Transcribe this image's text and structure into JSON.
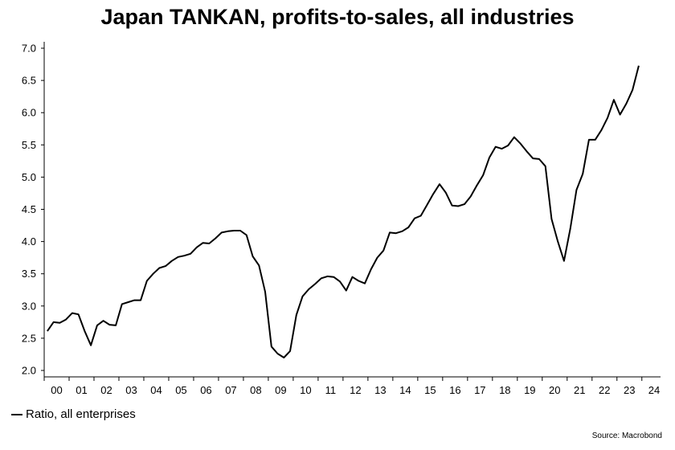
{
  "chart_data": {
    "type": "line",
    "title": "Japan TANKAN, profits-to-sales, all industries",
    "xlabel": "",
    "ylabel": "",
    "x_ticks": [
      "00",
      "01",
      "02",
      "03",
      "04",
      "05",
      "06",
      "07",
      "08",
      "09",
      "10",
      "11",
      "12",
      "13",
      "14",
      "15",
      "16",
      "17",
      "18",
      "19",
      "20",
      "21",
      "22",
      "23",
      "24"
    ],
    "ylim": [
      2.0,
      7.0
    ],
    "y_ticks": [
      "2.0",
      "2.5",
      "3.0",
      "3.5",
      "4.0",
      "4.5",
      "5.0",
      "5.5",
      "6.0",
      "6.5",
      "7.0"
    ],
    "grid": false,
    "legend": "bottom-left",
    "series": [
      {
        "name": "Ratio, all enterprises",
        "color": "#000000",
        "x": [
          "2000Q1",
          "2000Q2",
          "2000Q3",
          "2000Q4",
          "2001Q1",
          "2001Q2",
          "2001Q3",
          "2001Q4",
          "2002Q1",
          "2002Q2",
          "2002Q3",
          "2002Q4",
          "2003Q1",
          "2003Q2",
          "2003Q3",
          "2003Q4",
          "2004Q1",
          "2004Q2",
          "2004Q3",
          "2004Q4",
          "2005Q1",
          "2005Q2",
          "2005Q3",
          "2005Q4",
          "2006Q1",
          "2006Q2",
          "2006Q3",
          "2006Q4",
          "2007Q1",
          "2007Q2",
          "2007Q3",
          "2007Q4",
          "2008Q1",
          "2008Q2",
          "2008Q3",
          "2008Q4",
          "2009Q1",
          "2009Q2",
          "2009Q3",
          "2009Q4",
          "2010Q1",
          "2010Q2",
          "2010Q3",
          "2010Q4",
          "2011Q1",
          "2011Q2",
          "2011Q3",
          "2011Q4",
          "2012Q1",
          "2012Q2",
          "2012Q3",
          "2012Q4",
          "2013Q1",
          "2013Q2",
          "2013Q3",
          "2013Q4",
          "2014Q1",
          "2014Q2",
          "2014Q3",
          "2014Q4",
          "2015Q1",
          "2015Q2",
          "2015Q3",
          "2015Q4",
          "2016Q1",
          "2016Q2",
          "2016Q3",
          "2016Q4",
          "2017Q1",
          "2017Q2",
          "2017Q3",
          "2017Q4",
          "2018Q1",
          "2018Q2",
          "2018Q3",
          "2018Q4",
          "2019Q1",
          "2019Q2",
          "2019Q3",
          "2019Q4",
          "2020Q1",
          "2020Q2",
          "2020Q3",
          "2020Q4",
          "2021Q1",
          "2021Q2",
          "2021Q3",
          "2021Q4",
          "2022Q1",
          "2022Q2",
          "2022Q3",
          "2022Q4",
          "2023Q1",
          "2023Q2",
          "2023Q3",
          "2023Q4"
        ],
        "values": [
          2.61,
          2.75,
          2.74,
          2.79,
          2.89,
          2.87,
          2.61,
          2.39,
          2.7,
          2.77,
          2.71,
          2.7,
          3.03,
          3.06,
          3.09,
          3.09,
          3.39,
          3.5,
          3.59,
          3.62,
          3.7,
          3.76,
          3.78,
          3.81,
          3.91,
          3.98,
          3.97,
          4.05,
          4.14,
          4.16,
          4.17,
          4.17,
          4.1,
          3.77,
          3.63,
          3.22,
          2.37,
          2.26,
          2.2,
          2.3,
          2.86,
          3.15,
          3.26,
          3.34,
          3.43,
          3.46,
          3.45,
          3.38,
          3.24,
          3.45,
          3.39,
          3.35,
          3.57,
          3.75,
          3.86,
          4.14,
          4.13,
          4.16,
          4.22,
          4.36,
          4.4,
          4.57,
          4.74,
          4.89,
          4.76,
          4.56,
          4.55,
          4.58,
          4.7,
          4.87,
          5.03,
          5.3,
          5.47,
          5.44,
          5.49,
          5.62,
          5.52,
          5.4,
          5.29,
          5.28,
          5.17,
          4.35,
          4.0,
          3.7,
          4.2,
          4.8,
          5.05,
          5.58,
          5.58,
          5.73,
          5.92,
          6.2,
          5.97,
          6.14,
          6.35,
          6.73
        ]
      }
    ]
  },
  "source": "Source: Macrobond"
}
